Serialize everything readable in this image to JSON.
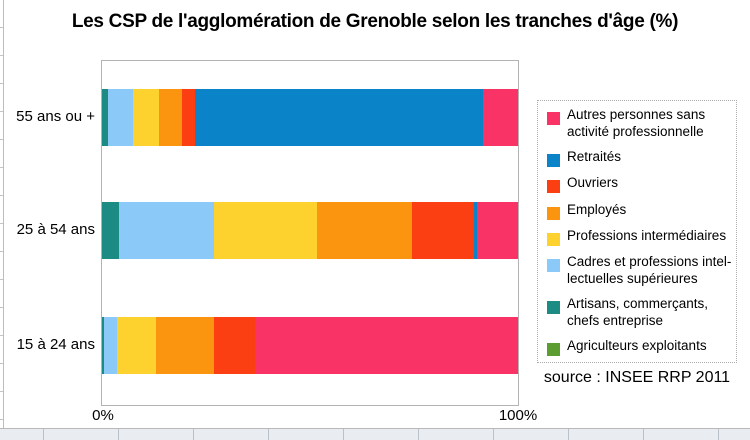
{
  "title": "Les CSP de l'agglomération de Grenoble selon les tranches d'âge (%)",
  "source": "source : INSEE RRP 2011",
  "x_axis": {
    "min_label": "0%",
    "max_label": "100%"
  },
  "chart_data": {
    "type": "bar",
    "orientation": "horizontal-stacked",
    "title": "Les CSP de l'agglomération de Grenoble selon les tranches d'âge (%)",
    "xlabel": "",
    "ylabel": "",
    "xlim": [
      0,
      100
    ],
    "legend_position": "right",
    "grid": false,
    "stack_note": "segments stacked left-to-right in reverse legend order (Agriculteurs leftmost, Autres rightmost)",
    "categories": [
      "55 ans ou +",
      "25 à 54 ans",
      "15 à 24 ans"
    ],
    "series": [
      {
        "name": "Autres personnes sans activité professionnelle",
        "label": "Autres personnes sans\nactivité professionnelle",
        "color": "#FA3366",
        "values": [
          8.4,
          9.8,
          63.2
        ]
      },
      {
        "name": "Retraités",
        "label": "Retraités",
        "color": "#0B83C8",
        "values": [
          69.2,
          0.8,
          0
        ]
      },
      {
        "name": "Ouvriers",
        "label": "Ouvriers",
        "color": "#FC3F13",
        "values": [
          3.2,
          14.9,
          9.8
        ]
      },
      {
        "name": "Employés",
        "label": "Employés",
        "color": "#FB940F",
        "values": [
          5.5,
          22.8,
          14.0
        ]
      },
      {
        "name": "Professions intermédiaires",
        "label": "Professions intermédiaires",
        "color": "#FDD22E",
        "values": [
          6.2,
          24.7,
          9.4
        ]
      },
      {
        "name": "Cadres et professions intellectuelles supérieures",
        "label": "Cadres et professions intel-\nlectuelles supérieures",
        "color": "#8BC9F9",
        "values": [
          6.1,
          23.0,
          3.0
        ]
      },
      {
        "name": "Artisans, commerçants, chefs entreprise",
        "label": "Artisans, commerçants,\nchefs entreprise",
        "color": "#1B8B84",
        "values": [
          1.4,
          4.0,
          0.6
        ]
      },
      {
        "name": "Agriculteurs exploitants",
        "label": "Agriculteurs exploitants",
        "color": "#5C9D31",
        "values": [
          0,
          0,
          0
        ]
      }
    ]
  }
}
